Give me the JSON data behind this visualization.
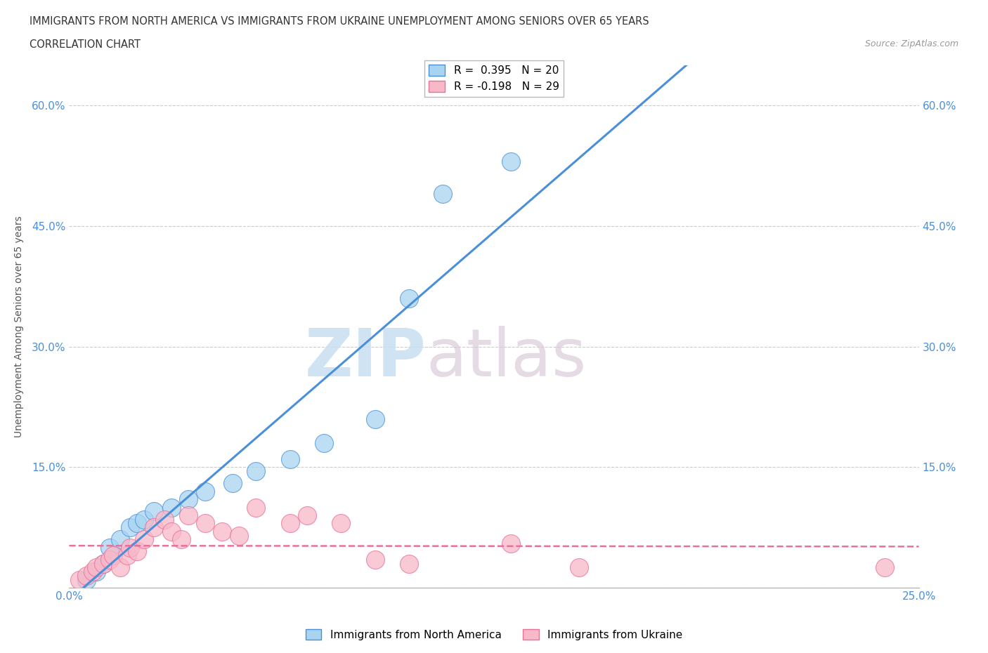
{
  "title_line1": "IMMIGRANTS FROM NORTH AMERICA VS IMMIGRANTS FROM UKRAINE UNEMPLOYMENT AMONG SENIORS OVER 65 YEARS",
  "title_line2": "CORRELATION CHART",
  "source": "Source: ZipAtlas.com",
  "ylabel": "Unemployment Among Seniors over 65 years",
  "xlim": [
    0.0,
    0.25
  ],
  "ylim": [
    0.0,
    0.65
  ],
  "x_ticks": [
    0.0,
    0.05,
    0.1,
    0.15,
    0.2,
    0.25
  ],
  "x_tick_labels": [
    "0.0%",
    "",
    "",
    "",
    "",
    "25.0%"
  ],
  "y_ticks": [
    0.0,
    0.15,
    0.3,
    0.45,
    0.6
  ],
  "y_tick_labels": [
    "",
    "15.0%",
    "30.0%",
    "45.0%",
    "60.0%"
  ],
  "north_america_R": 0.395,
  "north_america_N": 20,
  "ukraine_R": -0.198,
  "ukraine_N": 29,
  "north_america_color": "#a8d4f0",
  "ukraine_color": "#f7b8c8",
  "north_america_line_color": "#4a90d9",
  "ukraine_line_color": "#e8709a",
  "north_america_x": [
    0.005,
    0.008,
    0.01,
    0.012,
    0.015,
    0.018,
    0.02,
    0.022,
    0.025,
    0.03,
    0.035,
    0.04,
    0.048,
    0.055,
    0.065,
    0.075,
    0.09,
    0.1,
    0.11,
    0.13
  ],
  "north_america_y": [
    0.01,
    0.02,
    0.03,
    0.05,
    0.06,
    0.075,
    0.08,
    0.085,
    0.095,
    0.1,
    0.11,
    0.12,
    0.13,
    0.145,
    0.16,
    0.18,
    0.21,
    0.36,
    0.49,
    0.53
  ],
  "ukraine_x": [
    0.003,
    0.005,
    0.007,
    0.008,
    0.01,
    0.012,
    0.013,
    0.015,
    0.017,
    0.018,
    0.02,
    0.022,
    0.025,
    0.028,
    0.03,
    0.033,
    0.035,
    0.04,
    0.045,
    0.05,
    0.055,
    0.065,
    0.07,
    0.08,
    0.09,
    0.1,
    0.13,
    0.15,
    0.24
  ],
  "ukraine_y": [
    0.01,
    0.015,
    0.02,
    0.025,
    0.03,
    0.035,
    0.04,
    0.025,
    0.04,
    0.05,
    0.045,
    0.06,
    0.075,
    0.085,
    0.07,
    0.06,
    0.09,
    0.08,
    0.07,
    0.065,
    0.1,
    0.08,
    0.09,
    0.08,
    0.035,
    0.03,
    0.055,
    0.025,
    0.025
  ],
  "watermark_zip": "ZIP",
  "watermark_atlas": "atlas",
  "background_color": "#ffffff",
  "grid_color": "#cccccc"
}
